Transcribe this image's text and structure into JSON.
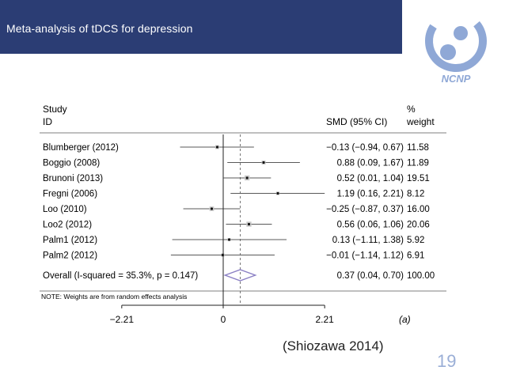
{
  "header": {
    "title": "Meta-analysis of tDCS for depression"
  },
  "logo": {
    "text": "NCNP"
  },
  "colors": {
    "header_bg": "#2b3d74",
    "logo_blue": "#8fa8d6",
    "pooled_diamond": "#8a7fc4",
    "page_number": "#9aaed6"
  },
  "chart_data": {
    "type": "forest",
    "columns": {
      "study_header": [
        "Study",
        "ID"
      ],
      "smd_header": "SMD (95% CI)",
      "weight_header": [
        "%",
        "weight"
      ]
    },
    "studies": [
      {
        "label": "Blumberger (2012)",
        "smd": -0.13,
        "lo": -0.94,
        "hi": 0.67,
        "ci_text": "−0.13 (−0.94, 0.67)",
        "weight": "11.58"
      },
      {
        "label": "Boggio (2008)",
        "smd": 0.88,
        "lo": 0.09,
        "hi": 1.67,
        "ci_text": "0.88 (0.09, 1.67)",
        "weight": "11.89"
      },
      {
        "label": "Brunoni (2013)",
        "smd": 0.52,
        "lo": 0.01,
        "hi": 1.04,
        "ci_text": "0.52 (0.01, 1.04)",
        "weight": "19.51"
      },
      {
        "label": "Fregni (2006)",
        "smd": 1.19,
        "lo": 0.16,
        "hi": 2.21,
        "ci_text": "1.19 (0.16, 2.21)",
        "weight": "8.12"
      },
      {
        "label": "Loo (2010)",
        "smd": -0.25,
        "lo": -0.87,
        "hi": 0.37,
        "ci_text": "−0.25 (−0.87, 0.37)",
        "weight": "16.00"
      },
      {
        "label": "Loo2 (2012)",
        "smd": 0.56,
        "lo": 0.06,
        "hi": 1.06,
        "ci_text": "0.56 (0.06, 1.06)",
        "weight": "20.06"
      },
      {
        "label": "Palm1 (2012)",
        "smd": 0.13,
        "lo": -1.11,
        "hi": 1.38,
        "ci_text": "0.13 (−1.11, 1.38)",
        "weight": "5.92"
      },
      {
        "label": "Palm2 (2012)",
        "smd": -0.01,
        "lo": -1.14,
        "hi": 1.12,
        "ci_text": "−0.01 (−1.14, 1.12)",
        "weight": "6.91"
      }
    ],
    "overall": {
      "label": "Overall (I-squared = 35.3%, p = 0.147)",
      "smd": 0.37,
      "lo": 0.04,
      "hi": 0.7,
      "ci_text": "0.37 (0.04, 0.70)",
      "weight": "100.00"
    },
    "note": "NOTE: Weights are from random effects analysis",
    "xticks": [
      -2.21,
      0,
      2.21
    ],
    "xtick_labels": [
      "−2.21",
      "0",
      "2.21"
    ],
    "xlim": [
      -2.21,
      2.21
    ],
    "panel_label": "(a)"
  },
  "citation": "(Shiozawa 2014)",
  "page_number": "19"
}
